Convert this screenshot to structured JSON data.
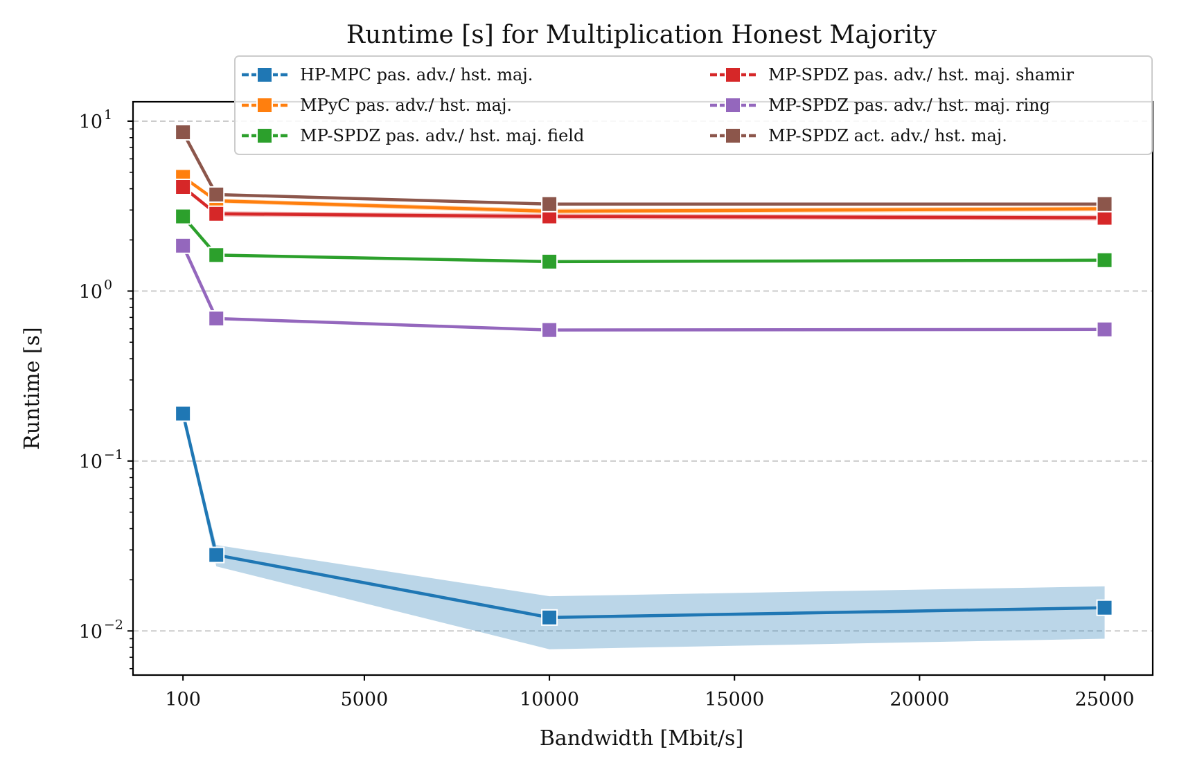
{
  "chart_data": {
    "type": "line",
    "title": "Runtime [s] for Multiplication Honest Majority",
    "xlabel": "Bandwidth [Mbit/s]",
    "ylabel": "Runtime [s]",
    "yscale": "log",
    "xlim": [
      -1250,
      26300
    ],
    "ylim": [
      0.0055,
      13
    ],
    "x": [
      100,
      1000,
      10000,
      25000
    ],
    "xticks": [
      {
        "value": 100,
        "label": "100"
      },
      {
        "value": 5000,
        "label": "5000"
      },
      {
        "value": 10000,
        "label": "10000"
      },
      {
        "value": 15000,
        "label": "15000"
      },
      {
        "value": 20000,
        "label": "20000"
      },
      {
        "value": 25000,
        "label": "25000"
      }
    ],
    "yticks": [
      {
        "value": 10,
        "base": "10",
        "exp": "1"
      },
      {
        "value": 1,
        "base": "10",
        "exp": "0"
      },
      {
        "value": 0.1,
        "base": "10",
        "exp": "−1"
      },
      {
        "value": 0.01,
        "base": "10",
        "exp": "−2"
      }
    ],
    "grid": "y-major-dashed",
    "legend_position": "top-right",
    "legend_columns": 2,
    "series": [
      {
        "name": "HP-MPC pas. adv./ hst. maj.",
        "color": "#1f77b4",
        "values": [
          0.19,
          0.028,
          0.012,
          0.0137
        ],
        "band_low": [
          0.19,
          0.024,
          0.0078,
          0.009
        ],
        "band_high": [
          0.19,
          0.032,
          0.016,
          0.0183
        ]
      },
      {
        "name": "MPyC pas. adv./ hst. maj.",
        "color": "#ff7f0e",
        "values": [
          4.7,
          3.4,
          2.95,
          3.05
        ],
        "band_low": [
          4.7,
          3.3,
          2.85,
          2.95
        ],
        "band_high": [
          4.7,
          3.5,
          3.05,
          3.15
        ]
      },
      {
        "name": "MP-SPDZ pas. adv./ hst. maj. field",
        "color": "#2ca02c",
        "values": [
          2.75,
          1.63,
          1.49,
          1.52
        ]
      },
      {
        "name": "MP-SPDZ pas. adv./ hst. maj. shamir",
        "color": "#d62728",
        "values": [
          4.1,
          2.85,
          2.75,
          2.7
        ],
        "band_low": [
          4.1,
          2.75,
          2.65,
          2.6
        ],
        "band_high": [
          4.1,
          2.95,
          2.85,
          2.8
        ]
      },
      {
        "name": "MP-SPDZ pas. adv./ hst. maj. ring",
        "color": "#9467bd",
        "values": [
          1.85,
          0.69,
          0.59,
          0.595
        ]
      },
      {
        "name": "MP-SPDZ act. adv./ hst. maj.",
        "color": "#8c564b",
        "values": [
          8.6,
          3.7,
          3.25,
          3.25
        ]
      }
    ]
  }
}
